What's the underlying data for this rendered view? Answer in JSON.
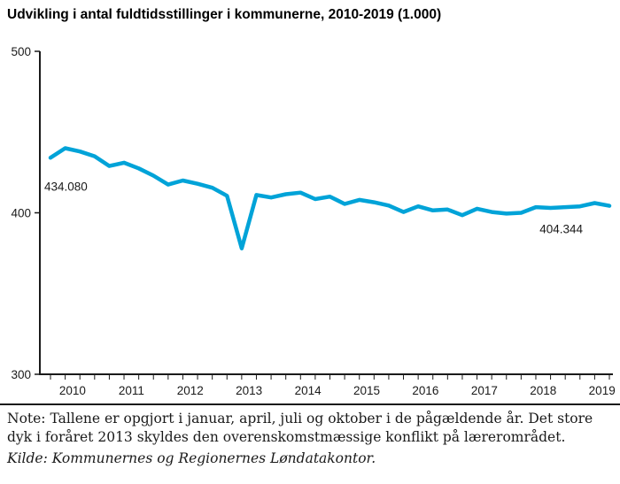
{
  "title": "Udvikling i antal fuldtidsstillinger i kommunerne, 2010-2019 (1.000)",
  "note": "Note: Tallene er opgjort i januar, april, juli og oktober i de pågældende år. Det store dyk i foråret 2013 skyldes den overenskomstmæssige konflikt på lærerområdet.",
  "source": "Kilde: Kommunernes og Regionernes Løndatakontor.",
  "chart_data": {
    "type": "line",
    "title": "Udvikling i antal fuldtidsstillinger i kommunerne, 2010-2019 (1.000)",
    "x_years": [
      "2010",
      "2011",
      "2012",
      "2013",
      "2014",
      "2015",
      "2016",
      "2017",
      "2018",
      "2019"
    ],
    "points_per_year": 4,
    "x_note": "quarterly observations: januar, april, juli, oktober",
    "values": [
      434.08,
      440.0,
      438.0,
      435.0,
      429.0,
      431.0,
      427.5,
      423.0,
      417.5,
      420.0,
      418.0,
      415.5,
      410.5,
      378.0,
      411.0,
      409.5,
      411.5,
      412.5,
      408.5,
      410.0,
      405.5,
      408.0,
      406.5,
      404.5,
      400.5,
      404.0,
      401.5,
      402.0,
      398.5,
      402.5,
      400.5,
      399.5,
      400.0,
      403.5,
      403.0,
      403.5,
      404.0,
      406.0,
      404.344
    ],
    "ylim": [
      300,
      500
    ],
    "y_ticks": [
      300,
      400,
      500
    ],
    "grid": false,
    "legend": false,
    "line_color": "#00a3d8",
    "axis_color": "#1a1a1a",
    "labels": {
      "first": "434.080",
      "last": "404.344"
    }
  }
}
